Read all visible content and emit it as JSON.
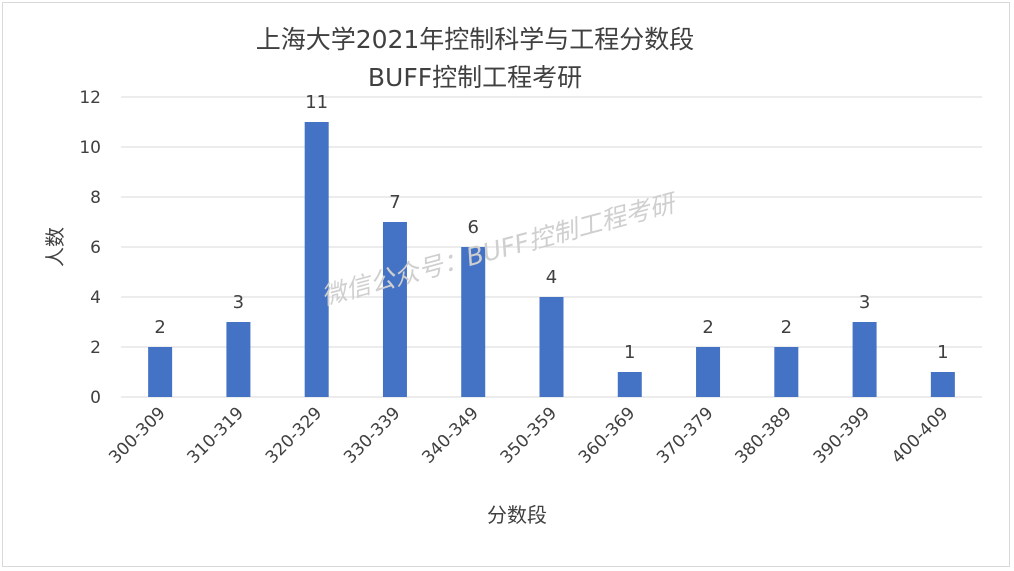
{
  "chart_data": {
    "type": "bar",
    "title": "上海大学2021年控制科学与工程分数段",
    "subtitle": "BUFF控制工程考研",
    "xlabel": "分数段",
    "ylabel": "人数",
    "categories": [
      "300-309",
      "310-319",
      "320-329",
      "330-339",
      "340-349",
      "350-359",
      "360-369",
      "370-379",
      "380-389",
      "390-399",
      "400-409"
    ],
    "values": [
      2,
      3,
      11,
      7,
      6,
      4,
      1,
      2,
      2,
      3,
      1
    ],
    "ylim": [
      0,
      12
    ],
    "yticks": [
      0,
      2,
      4,
      6,
      8,
      10,
      12
    ],
    "grid": true,
    "legend": "none",
    "colors": {
      "bar": "#4472C4",
      "grid": "#d9d9d9"
    }
  },
  "watermark": "微信公众号：BUFF控制工程考研"
}
